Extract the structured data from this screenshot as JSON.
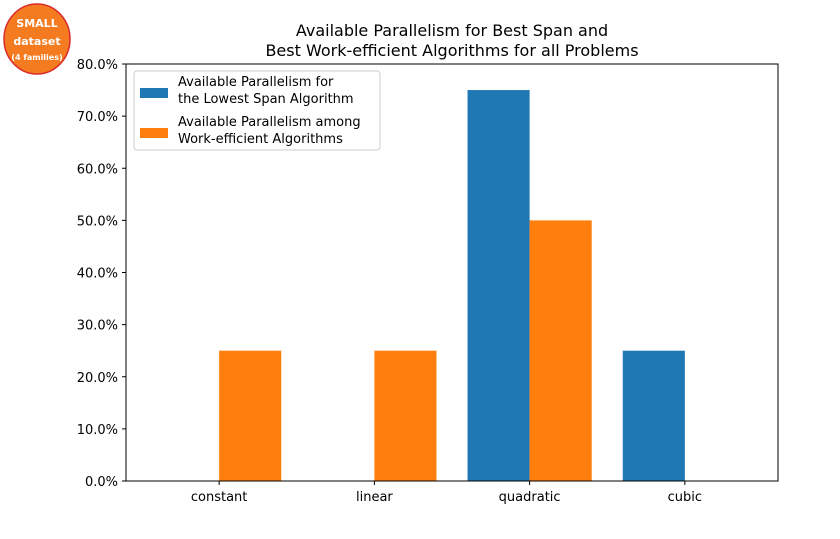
{
  "badge": {
    "line1": "SMALL",
    "line2": "dataset",
    "line3": "(4 families)",
    "fill": "#f47b20",
    "stroke": "#d92b2b"
  },
  "chart_data": {
    "type": "bar",
    "title_lines": [
      "Available Parallelism for Best Span and",
      "Best Work-efficient Algorithms for all Problems"
    ],
    "categories": [
      "constant",
      "linear",
      "quadratic",
      "cubic"
    ],
    "series": [
      {
        "name_lines": [
          "Available Parallelism for",
          "the Lowest Span Algorithm"
        ],
        "color": "#1f77b4",
        "values": [
          0,
          0,
          75,
          25
        ]
      },
      {
        "name_lines": [
          "Available Parallelism among",
          "Work-efficient Algorithms"
        ],
        "color": "#ff7f0e",
        "values": [
          25,
          25,
          50,
          0
        ]
      }
    ],
    "ylim": [
      0,
      80
    ],
    "yticks": [
      0,
      10,
      20,
      30,
      40,
      50,
      60,
      70,
      80
    ],
    "ytick_labels": [
      "0.0%",
      "10.0%",
      "20.0%",
      "30.0%",
      "40.0%",
      "50.0%",
      "60.0%",
      "70.0%",
      "80.0%"
    ],
    "legend_position": "top-left",
    "grid": false
  }
}
